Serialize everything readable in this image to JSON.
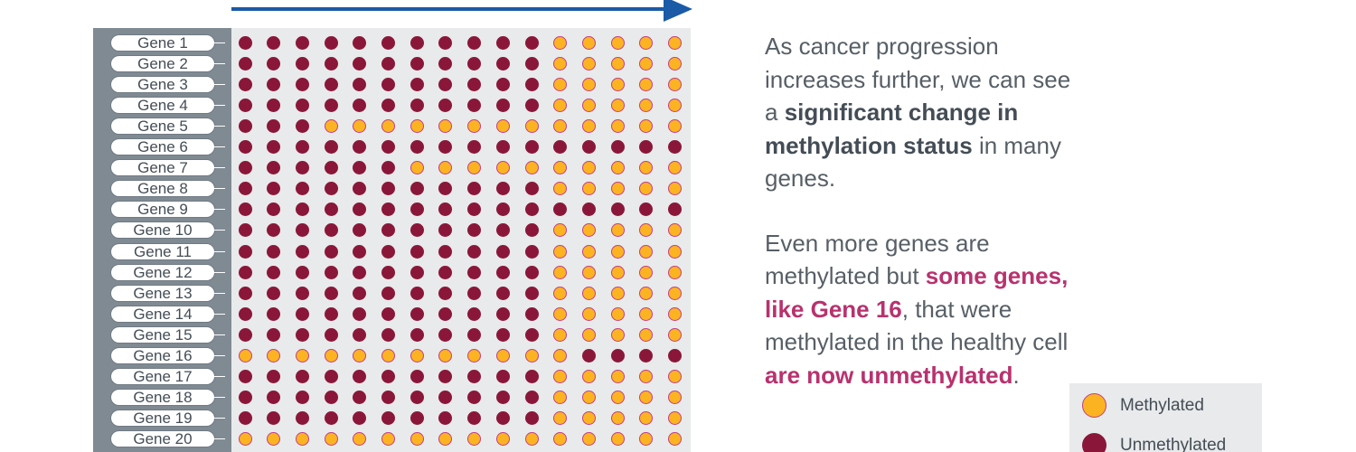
{
  "colors": {
    "arrow": "#1a5aa6",
    "methylated_fill": "#fcb322",
    "methylated_ring": "#c43e84",
    "unmethylated": "#8a1739",
    "label_column": "#808a93",
    "dot_area": "#e8eaeb",
    "emphasis_pink": "#b8326e",
    "emphasis_dark": "#444d56"
  },
  "genes": [
    {
      "label": "Gene 1",
      "pattern": "UUUUUUUUUUUMMMMM"
    },
    {
      "label": "Gene 2",
      "pattern": "UUUUUUUUUUUMMMMM"
    },
    {
      "label": "Gene 3",
      "pattern": "UUUUUUUUUUUMMMMM"
    },
    {
      "label": "Gene 4",
      "pattern": "UUUUUUUUUUUMMMMM"
    },
    {
      "label": "Gene 5",
      "pattern": "UUUMMMMMMMMMMMMM"
    },
    {
      "label": "Gene 6",
      "pattern": "UUUUUUUUUUUUUUUU"
    },
    {
      "label": "Gene 7",
      "pattern": "UUUUUUMMMMMMMMMM"
    },
    {
      "label": "Gene 8",
      "pattern": "UUUUUUUUUUUMMMMM"
    },
    {
      "label": "Gene 9",
      "pattern": "UUUUUUUUUUUUUUUU"
    },
    {
      "label": "Gene 10",
      "pattern": "UUUUUUUUUUUMMMMM"
    },
    {
      "label": "Gene 11",
      "pattern": "UUUUUUUUUUUMMMMM"
    },
    {
      "label": "Gene 12",
      "pattern": "UUUUUUUUUUUMMMMM"
    },
    {
      "label": "Gene 13",
      "pattern": "UUUUUUUUUUUMMMMM"
    },
    {
      "label": "Gene 14",
      "pattern": "UUUUUUUUUUUMMMMM"
    },
    {
      "label": "Gene 15",
      "pattern": "UUUUUUUUUUUMMMMM"
    },
    {
      "label": "Gene 16",
      "pattern": "MMMMMMMMMMMMUUUU"
    },
    {
      "label": "Gene 17",
      "pattern": "UUUUUUUUUUUMMMMM"
    },
    {
      "label": "Gene 18",
      "pattern": "UUUUUUUUUUUMMMMM"
    },
    {
      "label": "Gene 19",
      "pattern": "UUUUUUUUUUUMMMMM"
    },
    {
      "label": "Gene 20",
      "pattern": "MMMMMMMMMMMMMMMM"
    }
  ],
  "explanation": {
    "p1_a": "As cancer progression increases further, we can see a ",
    "p1_b": "significant change in methylation status",
    "p1_c": " in many genes.",
    "p2_a": "Even more genes are methylated but ",
    "p2_b": "some genes, like Gene 16",
    "p2_c": ", that were methylated in the healthy cell ",
    "p2_d": "are now unmethylated",
    "p2_e": "."
  },
  "legend": {
    "methylated": "Methylated",
    "unmethylated": "Unmethylated"
  }
}
